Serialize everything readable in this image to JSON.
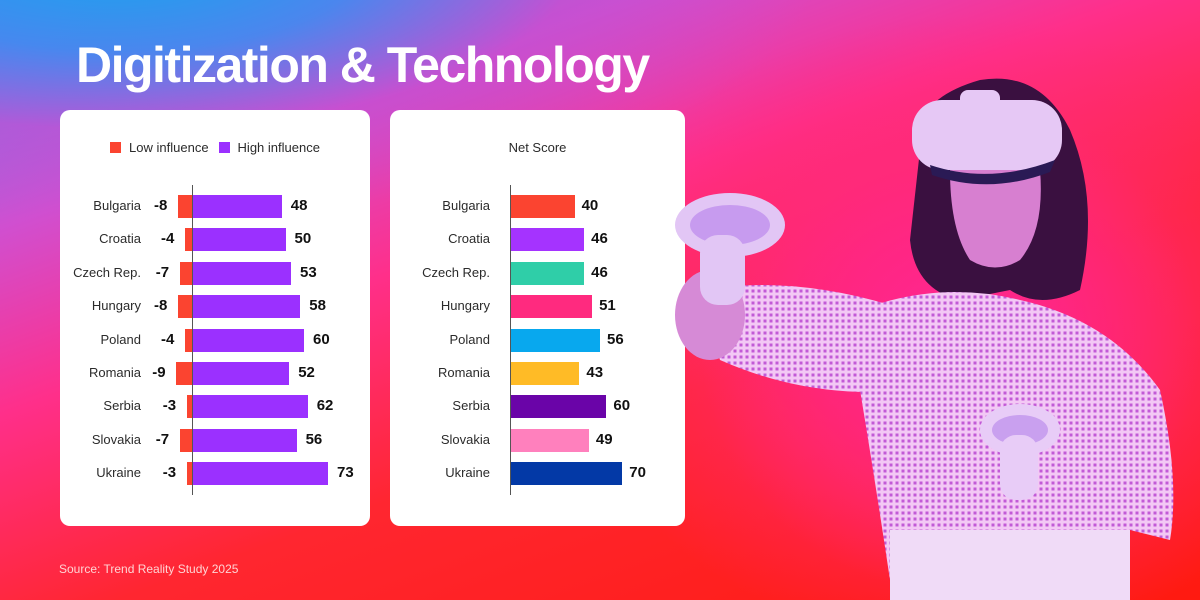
{
  "title": "Digitization & Technology",
  "source": "Source: Trend Reality Study 2025",
  "colors": {
    "low_influence": "#fb4430",
    "high_influence": "#9b30ff"
  },
  "left_chart": {
    "legend": [
      {
        "label": "Low influence",
        "color": "#fb4430"
      },
      {
        "label": "High influence",
        "color": "#9b30ff"
      }
    ]
  },
  "right_chart": {
    "title": "Net Score"
  },
  "chart_data": [
    {
      "type": "bar",
      "orientation": "horizontal",
      "stacked": "diverging",
      "title": "",
      "categories": [
        "Bulgaria",
        "Croatia",
        "Czech Rep.",
        "Hungary",
        "Poland",
        "Romania",
        "Serbia",
        "Slovakia",
        "Ukraine"
      ],
      "series": [
        {
          "name": "Low influence",
          "color": "#fb4430",
          "values": [
            -8,
            -4,
            -7,
            -8,
            -4,
            -9,
            -3,
            -7,
            -3
          ]
        },
        {
          "name": "High influence",
          "color": "#9b30ff",
          "values": [
            48,
            50,
            53,
            58,
            60,
            52,
            62,
            56,
            73
          ]
        }
      ],
      "legend_position": "top",
      "grid": false,
      "xlabel": "",
      "ylabel": ""
    },
    {
      "type": "bar",
      "orientation": "horizontal",
      "title": "Net Score",
      "categories": [
        "Bulgaria",
        "Croatia",
        "Czech Rep.",
        "Hungary",
        "Poland",
        "Romania",
        "Serbia",
        "Slovakia",
        "Ukraine"
      ],
      "values": [
        40,
        46,
        46,
        51,
        56,
        43,
        60,
        49,
        70
      ],
      "colors": [
        "#fb4430",
        "#a533ff",
        "#2fcea8",
        "#ff2a7f",
        "#08a8ee",
        "#ffbb26",
        "#6a04a8",
        "#ff80bd",
        "#0339a6"
      ],
      "grid": false,
      "xlabel": "",
      "ylabel": ""
    }
  ]
}
